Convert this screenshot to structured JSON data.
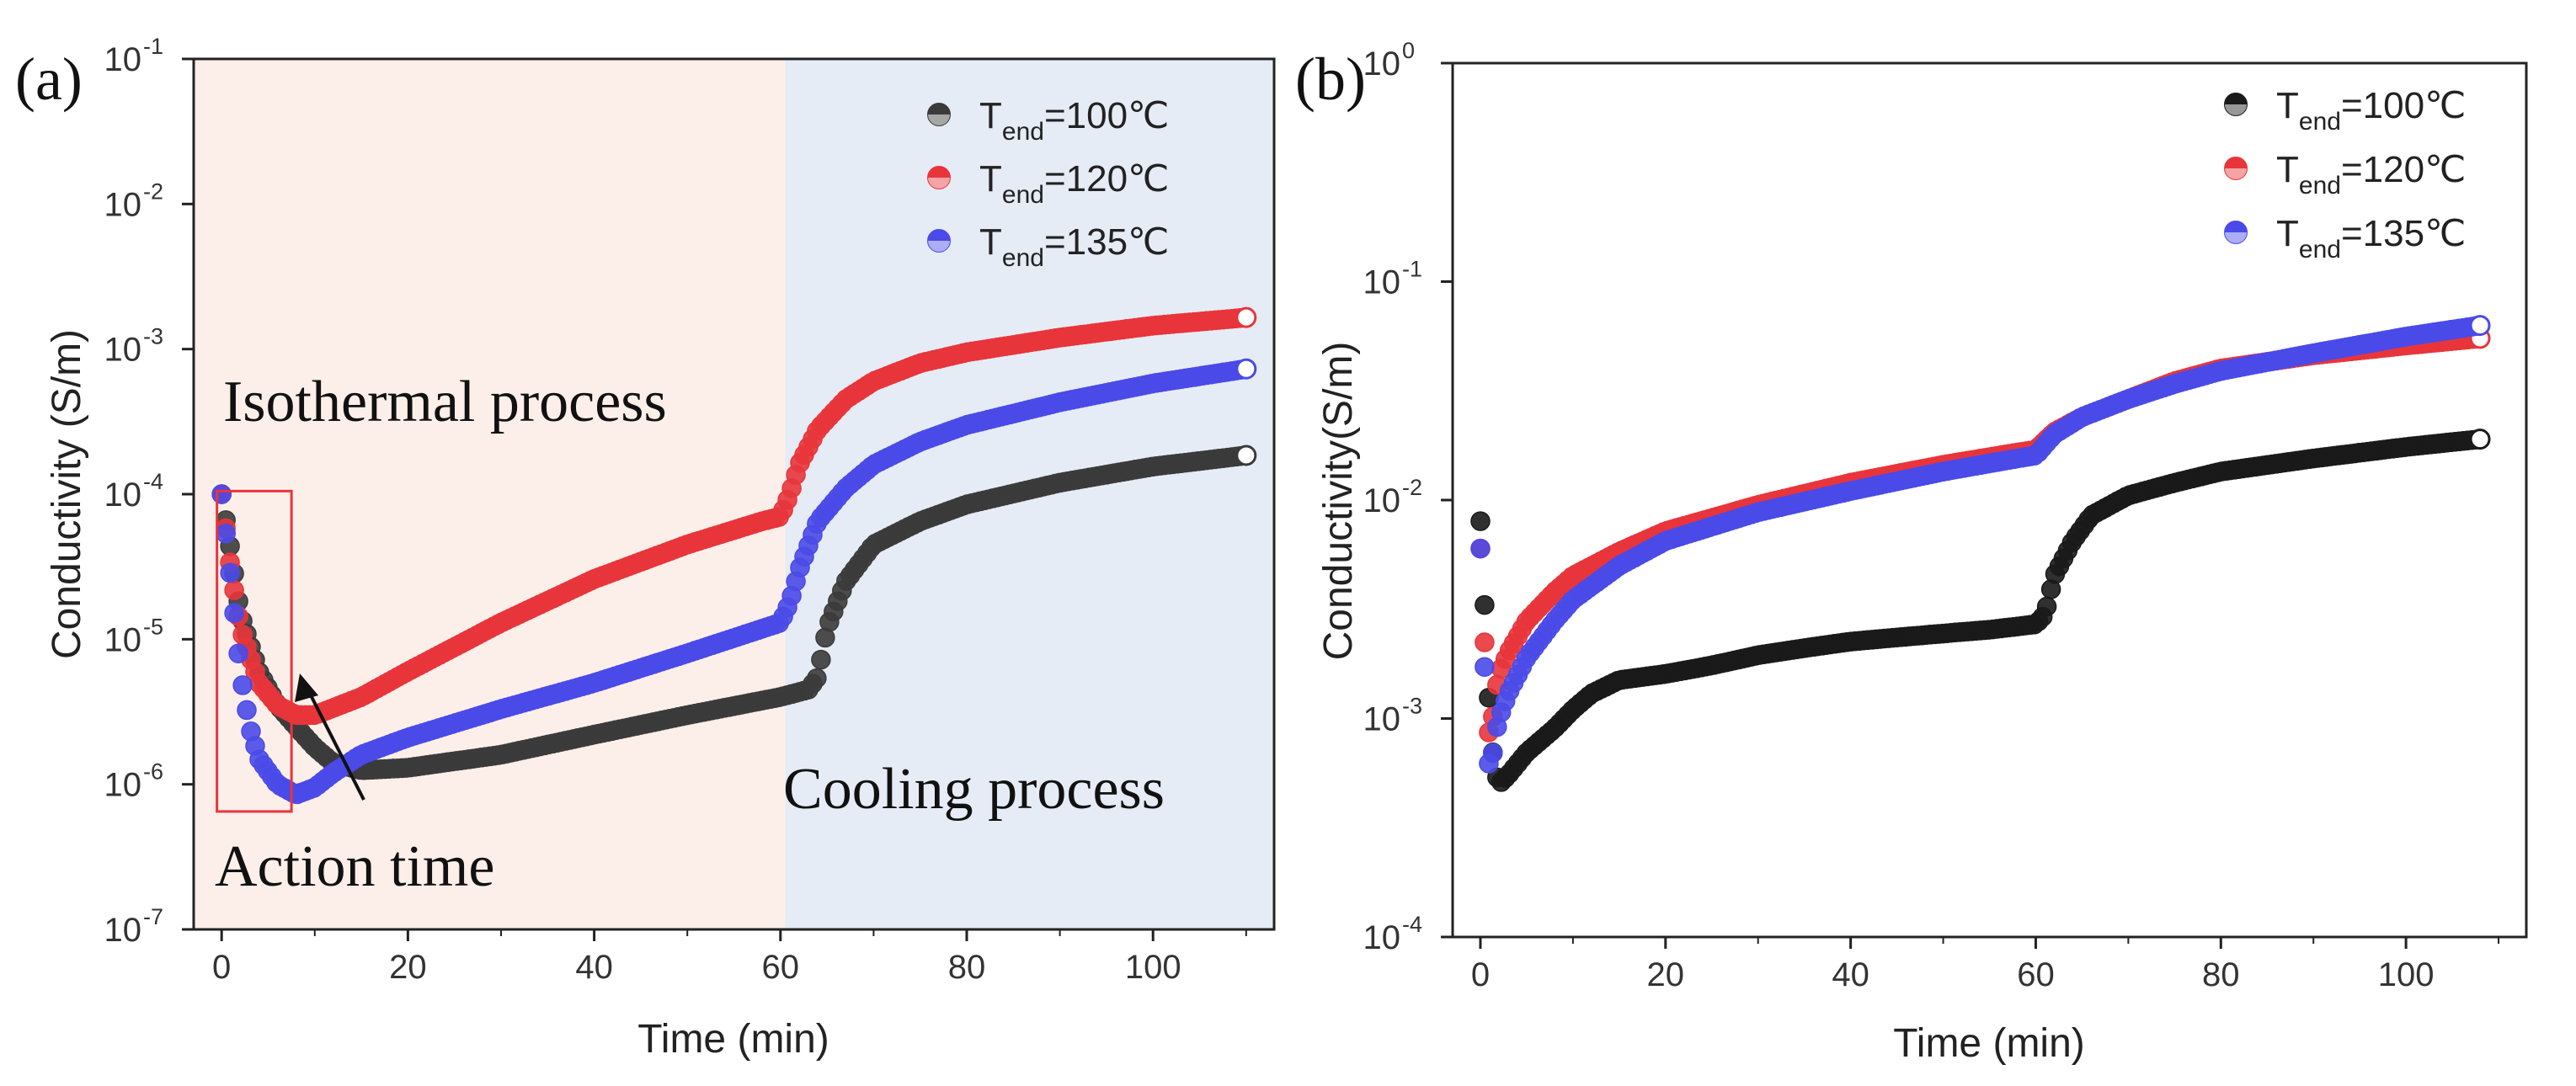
{
  "chart_data": [
    {
      "panel_label": "(a)",
      "type": "scatter",
      "y_scale": "log",
      "xlabel": "Time (min)",
      "ylabel": "Conductivity (S/m)",
      "xlim": [
        -3,
        113
      ],
      "ylim_exponents": [
        -7,
        -1
      ],
      "x_ticks": [
        "0",
        "20",
        "40",
        "60",
        "80",
        "100"
      ],
      "y_ticks": [
        {
          "base": "10",
          "exp": "-7"
        },
        {
          "base": "10",
          "exp": "-6"
        },
        {
          "base": "10",
          "exp": "-5"
        },
        {
          "base": "10",
          "exp": "-4"
        },
        {
          "base": "10",
          "exp": "-3"
        },
        {
          "base": "10",
          "exp": "-2"
        },
        {
          "base": "10",
          "exp": "-1"
        }
      ],
      "regions": [
        {
          "name": "Isothermal process",
          "x_from": -3,
          "x_to": 60.5,
          "color": "#fcefe9"
        },
        {
          "name": "Cooling process",
          "x_from": 60.5,
          "x_to": 113,
          "color": "#e6ecf5"
        }
      ],
      "annotations": {
        "isothermal": "Isothermal process",
        "cooling": "Cooling process",
        "action": "Action time"
      },
      "action_box": {
        "x_from": -0.5,
        "x_to": 7.5,
        "y_from": 6.5e-07,
        "y_to": 0.000105
      },
      "series": [
        {
          "name": "T_end=100℃",
          "label_prefix": "T",
          "label_sub": "end",
          "label_suffix": "=100℃",
          "color": "#3b3b3b",
          "points": [
            [
              0,
              0.0001
            ],
            [
              1,
              4e-05
            ],
            [
              2,
              1.5e-05
            ],
            [
              4,
              6e-06
            ],
            [
              6,
              3.5e-06
            ],
            [
              8,
              2.5e-06
            ],
            [
              10,
              1.8e-06
            ],
            [
              12,
              1.4e-06
            ],
            [
              15,
              1.25e-06
            ],
            [
              20,
              1.3e-06
            ],
            [
              30,
              1.6e-06
            ],
            [
              40,
              2.2e-06
            ],
            [
              50,
              3e-06
            ],
            [
              60,
              4e-06
            ],
            [
              63,
              4.5e-06
            ],
            [
              64,
              5.5e-06
            ],
            [
              65,
              1.2e-05
            ],
            [
              67,
              2.5e-05
            ],
            [
              70,
              4.5e-05
            ],
            [
              75,
              6.5e-05
            ],
            [
              80,
              8.5e-05
            ],
            [
              90,
              0.00012
            ],
            [
              100,
              0.000155
            ],
            [
              110,
              0.000185
            ]
          ]
        },
        {
          "name": "T_end=120℃",
          "label_prefix": "T",
          "label_sub": "end",
          "label_suffix": "=120℃",
          "color": "#e8353b",
          "points": [
            [
              0,
              0.0001
            ],
            [
              1,
              3e-05
            ],
            [
              2,
              1.2e-05
            ],
            [
              4,
              5e-06
            ],
            [
              6,
              3.5e-06
            ],
            [
              8,
              3e-06
            ],
            [
              10,
              3e-06
            ],
            [
              15,
              4e-06
            ],
            [
              20,
              6e-06
            ],
            [
              30,
              1.3e-05
            ],
            [
              40,
              2.6e-05
            ],
            [
              50,
              4.5e-05
            ],
            [
              58,
              6.5e-05
            ],
            [
              60,
              7e-05
            ],
            [
              61,
              0.0001
            ],
            [
              62,
              0.00016
            ],
            [
              64,
              0.00028
            ],
            [
              67,
              0.00045
            ],
            [
              70,
              0.0006
            ],
            [
              75,
              0.0008
            ],
            [
              80,
              0.00095
            ],
            [
              90,
              0.0012
            ],
            [
              100,
              0.00145
            ],
            [
              110,
              0.00165
            ]
          ]
        },
        {
          "name": "T_end=135℃",
          "label_prefix": "T",
          "label_sub": "end",
          "label_suffix": "=135℃",
          "color": "#4a4ae8",
          "points": [
            [
              0,
              0.0001
            ],
            [
              1,
              2.5e-05
            ],
            [
              2,
              6e-06
            ],
            [
              3,
              2.5e-06
            ],
            [
              4,
              1.5e-06
            ],
            [
              6,
              1e-06
            ],
            [
              8,
              8.5e-07
            ],
            [
              10,
              9.5e-07
            ],
            [
              12,
              1.2e-06
            ],
            [
              15,
              1.6e-06
            ],
            [
              20,
              2.1e-06
            ],
            [
              30,
              3.3e-06
            ],
            [
              40,
              5e-06
            ],
            [
              50,
              8e-06
            ],
            [
              60,
              1.3e-05
            ],
            [
              61,
              1.8e-05
            ],
            [
              62,
              3e-05
            ],
            [
              64,
              6.5e-05
            ],
            [
              67,
              0.00011
            ],
            [
              70,
              0.00016
            ],
            [
              75,
              0.00023
            ],
            [
              80,
              0.0003
            ],
            [
              90,
              0.00043
            ],
            [
              100,
              0.00058
            ],
            [
              110,
              0.00073
            ]
          ]
        }
      ]
    },
    {
      "panel_label": "(b)",
      "type": "scatter",
      "y_scale": "log",
      "xlabel": "Time (min)",
      "ylabel": "Conductivity(S/m)",
      "xlim": [
        -3,
        113
      ],
      "ylim_exponents": [
        -4,
        0
      ],
      "x_ticks": [
        "0",
        "20",
        "40",
        "60",
        "80",
        "100"
      ],
      "y_ticks": [
        {
          "base": "10",
          "exp": "-4"
        },
        {
          "base": "10",
          "exp": "-3"
        },
        {
          "base": "10",
          "exp": "-2"
        },
        {
          "base": "10",
          "exp": "-1"
        },
        {
          "base": "10",
          "exp": "0"
        }
      ],
      "series": [
        {
          "name": "T_end=100℃",
          "label_prefix": "T",
          "label_sub": "end",
          "label_suffix": "=100℃",
          "color": "#1a1a1a",
          "points": [
            [
              0,
              0.008
            ],
            [
              0.5,
              0.003
            ],
            [
              1,
              0.001
            ],
            [
              1.5,
              0.0006
            ],
            [
              2,
              0.0005
            ],
            [
              3,
              0.00055
            ],
            [
              5,
              0.0007
            ],
            [
              8,
              0.0009
            ],
            [
              10,
              0.0011
            ],
            [
              12,
              0.0013
            ],
            [
              15,
              0.0015
            ],
            [
              20,
              0.0016
            ],
            [
              25,
              0.00175
            ],
            [
              30,
              0.00195
            ],
            [
              35,
              0.0021
            ],
            [
              40,
              0.00225
            ],
            [
              45,
              0.00235
            ],
            [
              50,
              0.00245
            ],
            [
              55,
              0.00255
            ],
            [
              60,
              0.0027
            ],
            [
              61,
              0.003
            ],
            [
              62,
              0.0045
            ],
            [
              64,
              0.0065
            ],
            [
              66,
              0.0085
            ],
            [
              70,
              0.0105
            ],
            [
              75,
              0.012
            ],
            [
              80,
              0.0135
            ],
            [
              90,
              0.0155
            ],
            [
              100,
              0.0175
            ],
            [
              108,
              0.019
            ]
          ]
        },
        {
          "name": "T_end=120℃",
          "label_prefix": "T",
          "label_sub": "end",
          "label_suffix": "=120℃",
          "color": "#e8353b",
          "points": [
            [
              0,
              0.006
            ],
            [
              0.5,
              0.002
            ],
            [
              1,
              0.0007
            ],
            [
              1.5,
              0.0012
            ],
            [
              2,
              0.0016
            ],
            [
              3,
              0.002
            ],
            [
              5,
              0.0028
            ],
            [
              8,
              0.0038
            ],
            [
              10,
              0.0045
            ],
            [
              15,
              0.0058
            ],
            [
              20,
              0.0072
            ],
            [
              30,
              0.0095
            ],
            [
              40,
              0.012
            ],
            [
              50,
              0.0145
            ],
            [
              58,
              0.0165
            ],
            [
              60,
              0.017
            ],
            [
              62,
              0.0205
            ],
            [
              65,
              0.024
            ],
            [
              70,
              0.029
            ],
            [
              75,
              0.035
            ],
            [
              80,
              0.04
            ],
            [
              90,
              0.046
            ],
            [
              100,
              0.051
            ],
            [
              108,
              0.055
            ]
          ]
        },
        {
          "name": "T_end=135℃",
          "label_prefix": "T",
          "label_sub": "end",
          "label_suffix": "=135℃",
          "color": "#4a4ae8",
          "points": [
            [
              0,
              0.006
            ],
            [
              0.5,
              0.0015
            ],
            [
              1,
              0.0005
            ],
            [
              1.5,
              0.0008
            ],
            [
              2,
              0.001
            ],
            [
              3,
              0.0013
            ],
            [
              5,
              0.0019
            ],
            [
              8,
              0.0028
            ],
            [
              10,
              0.0035
            ],
            [
              15,
              0.005
            ],
            [
              20,
              0.0065
            ],
            [
              30,
              0.0088
            ],
            [
              40,
              0.011
            ],
            [
              50,
              0.0135
            ],
            [
              58,
              0.0155
            ],
            [
              60,
              0.016
            ],
            [
              62,
              0.02
            ],
            [
              65,
              0.024
            ],
            [
              70,
              0.029
            ],
            [
              75,
              0.034
            ],
            [
              80,
              0.039
            ],
            [
              90,
              0.047
            ],
            [
              100,
              0.056
            ],
            [
              108,
              0.063
            ]
          ]
        }
      ]
    }
  ]
}
